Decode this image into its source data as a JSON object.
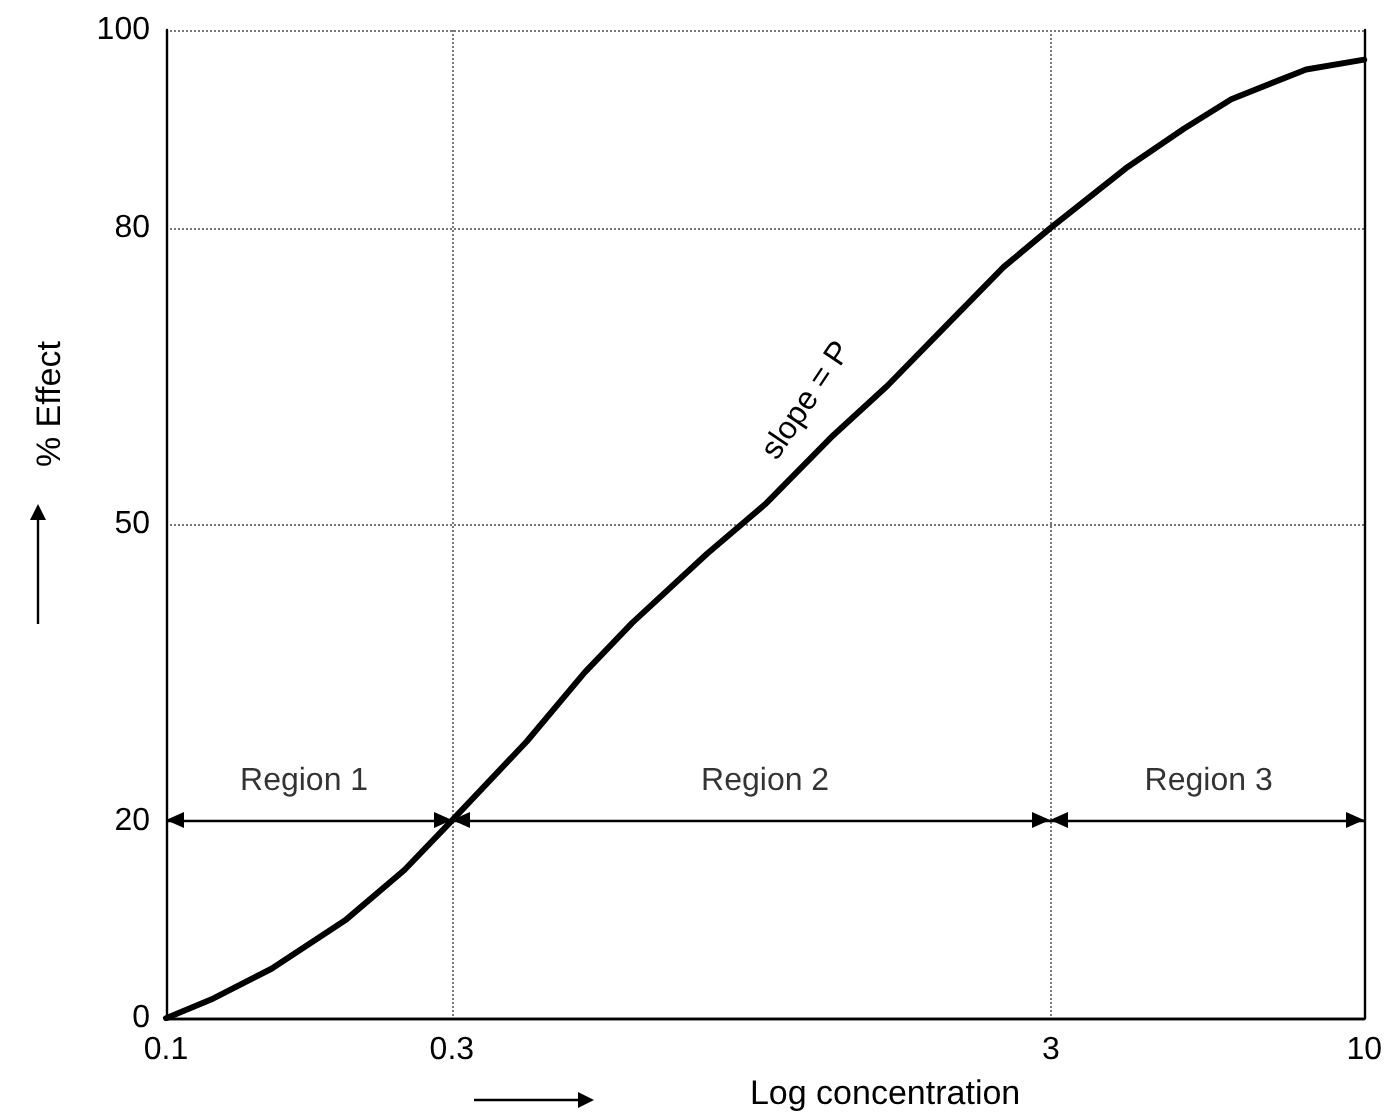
{
  "chart_data": {
    "type": "line",
    "xlabel": "Log concentration",
    "ylabel": "% Effect",
    "x": [
      0.1,
      0.12,
      0.15,
      0.2,
      0.25,
      0.3,
      0.4,
      0.5,
      0.6,
      0.8,
      1,
      1.3,
      1.6,
      2,
      2.5,
      3,
      4,
      5,
      6,
      8,
      10
    ],
    "series": [
      {
        "color": "#000000",
        "values": [
          0,
          2,
          5,
          10,
          15,
          20,
          28,
          35,
          40,
          47,
          52,
          59,
          64,
          70,
          76,
          80,
          86,
          90,
          93,
          96,
          97
        ]
      }
    ],
    "log": "x",
    "xlim": [
      0.1,
      10
    ],
    "xticks": [
      0.1,
      0.3,
      3,
      10
    ],
    "ylim": [
      0,
      100
    ],
    "yticks": [
      0,
      20,
      50,
      80,
      100
    ],
    "grid": true,
    "marker": "none",
    "line_style": "solid",
    "ref_lines": [
      {
        "axis": "y",
        "value": 20
      }
    ],
    "annotations": [
      {
        "text": "Region 1",
        "x": 0.17,
        "y": 20
      },
      {
        "text": "Region 2",
        "x": 1,
        "y": 20
      },
      {
        "text": "Region 3",
        "x": 5.5,
        "y": 20
      },
      "slope = P"
    ]
  }
}
